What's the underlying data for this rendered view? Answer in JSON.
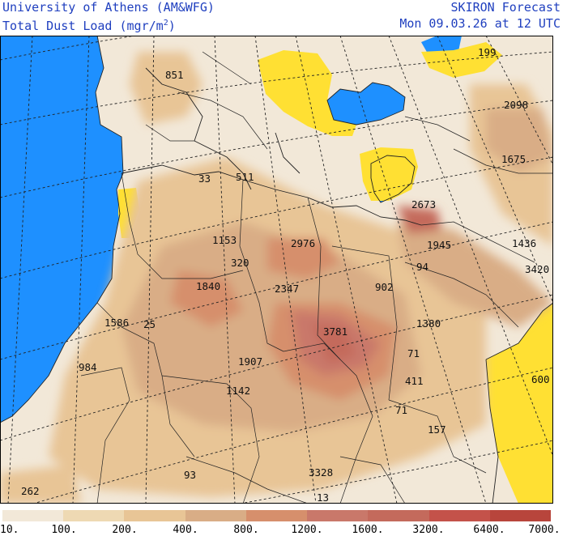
{
  "header": {
    "left_line1": "University of Athens (AM&WFG)",
    "left_line2_main": "Total Dust Load (mgr/m",
    "left_line2_sup": "2",
    "left_line2_end": ")",
    "right_line1": "SKIRON Forecast",
    "right_line2": "Mon 09.03.26 at 12 UTC"
  },
  "legend": {
    "labels": [
      "10.",
      "100.",
      "200.",
      "400.",
      "800.",
      "1200.",
      "1600.",
      "3200.",
      "6400.",
      "7000."
    ],
    "colors": [
      "#f2e8d8",
      "#eed9b3",
      "#e8c596",
      "#d9ad86",
      "#d68f6c",
      "#c9786a",
      "#c46a5c",
      "#c4524a",
      "#b8453c"
    ]
  },
  "colors": {
    "sea": "#1e90ff",
    "low": "#ffe033",
    "text_blue": "#1f3fbf"
  },
  "values": [
    {
      "label": "851"
    },
    {
      "label": "199"
    },
    {
      "label": "2098"
    },
    {
      "label": "1675"
    },
    {
      "label": "33"
    },
    {
      "label": "511"
    },
    {
      "label": "2673"
    },
    {
      "label": "1153"
    },
    {
      "label": "2976"
    },
    {
      "label": "1945"
    },
    {
      "label": "1436"
    },
    {
      "label": "320"
    },
    {
      "label": "94"
    },
    {
      "label": "3420"
    },
    {
      "label": "1840"
    },
    {
      "label": "2347"
    },
    {
      "label": "902"
    },
    {
      "label": "1586"
    },
    {
      "label": "25"
    },
    {
      "label": "3781"
    },
    {
      "label": "1380"
    },
    {
      "label": "1907"
    },
    {
      "label": "71"
    },
    {
      "label": "984"
    },
    {
      "label": "411"
    },
    {
      "label": "600"
    },
    {
      "label": "1142"
    },
    {
      "label": "71"
    },
    {
      "label": "157"
    },
    {
      "label": "93"
    },
    {
      "label": "3328"
    },
    {
      "label": "262"
    },
    {
      "label": "13"
    }
  ]
}
